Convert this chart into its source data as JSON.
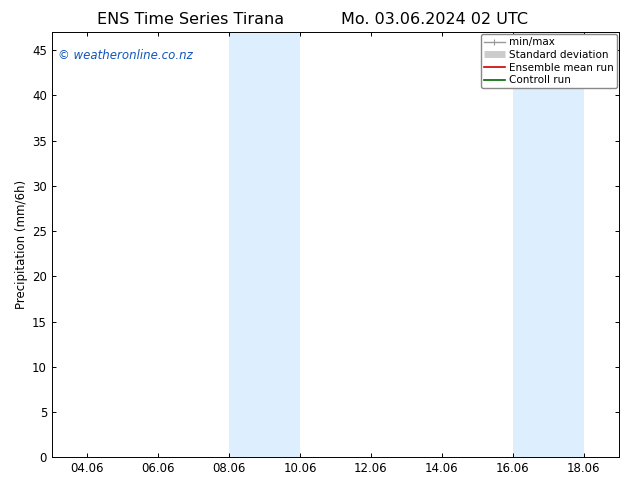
{
  "title_left": "ENS Time Series Tirana",
  "title_right": "Mo. 03.06.2024 02 UTC",
  "ylabel": "Precipitation (mm/6h)",
  "xlim": [
    0.0,
    16.0
  ],
  "ylim": [
    0,
    47
  ],
  "yticks": [
    0,
    5,
    10,
    15,
    20,
    25,
    30,
    35,
    40,
    45
  ],
  "xtick_labels": [
    "04.06",
    "06.06",
    "08.06",
    "10.06",
    "12.06",
    "14.06",
    "16.06",
    "18.06"
  ],
  "xtick_positions": [
    1.0,
    3.0,
    5.0,
    7.0,
    9.0,
    11.0,
    13.0,
    15.0
  ],
  "shade_bands": [
    {
      "x_start": 5.0,
      "x_end": 7.0
    },
    {
      "x_start": 13.0,
      "x_end": 15.0
    }
  ],
  "shade_color": "#ddeeff",
  "background_color": "#ffffff",
  "watermark_text": "© weatheronline.co.nz",
  "watermark_color": "#1155bb",
  "legend_items": [
    {
      "label": "min/max",
      "color": "#999999",
      "lw": 1.0
    },
    {
      "label": "Standard deviation",
      "color": "#cccccc",
      "lw": 5.0
    },
    {
      "label": "Ensemble mean run",
      "color": "#cc0000",
      "lw": 1.2
    },
    {
      "label": "Controll run",
      "color": "#006600",
      "lw": 1.2
    }
  ],
  "title_fontsize": 11.5,
  "tick_fontsize": 8.5,
  "legend_fontsize": 7.5,
  "ylabel_fontsize": 8.5,
  "watermark_fontsize": 8.5
}
